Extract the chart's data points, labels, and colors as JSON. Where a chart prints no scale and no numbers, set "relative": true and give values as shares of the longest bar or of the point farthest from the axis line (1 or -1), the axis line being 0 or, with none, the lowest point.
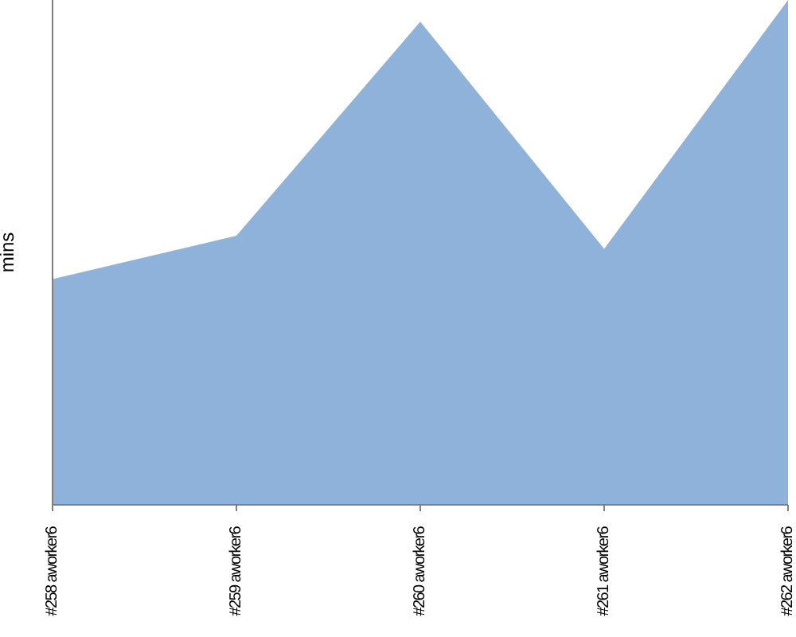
{
  "chart_data": {
    "type": "area",
    "ylabel": "mins",
    "relative": true,
    "categories": [
      "#258 aworker6",
      "#259 aworker6",
      "#260 aworker6",
      "#261 aworker6",
      "#262 aworker6"
    ],
    "series": [
      {
        "color": "#8fb2db",
        "values": [
          0.447,
          0.533,
          0.957,
          0.507,
          1
        ]
      }
    ],
    "grid": false,
    "legend": false
  }
}
